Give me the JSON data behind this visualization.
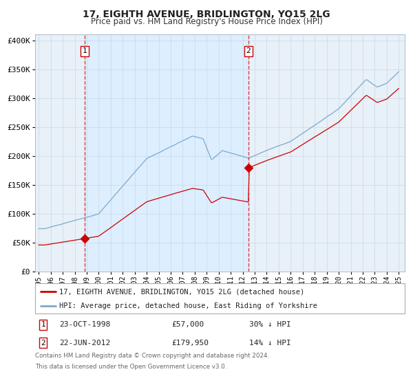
{
  "title": "17, EIGHTH AVENUE, BRIDLINGTON, YO15 2LG",
  "subtitle": "Price paid vs. HM Land Registry's House Price Index (HPI)",
  "legend_line1": "17, EIGHTH AVENUE, BRIDLINGTON, YO15 2LG (detached house)",
  "legend_line2": "HPI: Average price, detached house, East Riding of Yorkshire",
  "footnote_line1": "Contains HM Land Registry data © Crown copyright and database right 2024.",
  "footnote_line2": "This data is licensed under the Open Government Licence v3.0.",
  "line_color_red": "#cc0000",
  "line_color_blue": "#7aabcf",
  "background_fill": "#ddeeff",
  "plot_bg": "#e8f0f8",
  "shade_start_year": 1998.81,
  "shade_end_year": 2012.47,
  "sale1_year": 1998.81,
  "sale1_price": 57000,
  "sale2_year": 2012.47,
  "sale2_price": 179950,
  "ylim": [
    0,
    410000
  ],
  "xlim_start": 1994.7,
  "xlim_end": 2025.5,
  "table_row1_label": "1",
  "table_row1_date": "23-OCT-1998",
  "table_row1_price": "£57,000",
  "table_row1_hpi": "30% ↓ HPI",
  "table_row2_label": "2",
  "table_row2_date": "22-JUN-2012",
  "table_row2_price": "£179,950",
  "table_row2_hpi": "14% ↓ HPI"
}
